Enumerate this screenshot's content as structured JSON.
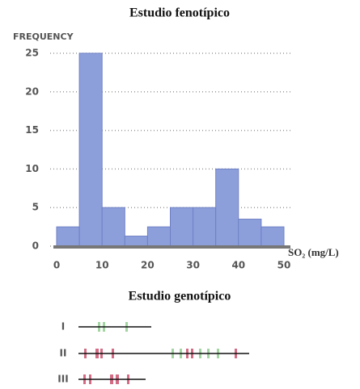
{
  "chart_data": {
    "type": "histogram",
    "title": "Estudio fenotípico",
    "y_label": "FREQUENCY",
    "x_label": "SO₂ (mg/L)",
    "bins": [
      0,
      5,
      10,
      15,
      20,
      25,
      30,
      35,
      40,
      45,
      50
    ],
    "values": [
      2.5,
      25,
      5,
      1.3,
      2.5,
      5,
      5,
      10,
      3.5,
      2.5
    ],
    "color": "#8d9fdb",
    "xlim": [
      0,
      50
    ],
    "xticks": [
      0,
      10,
      20,
      30,
      40,
      50
    ],
    "ylim": [
      0,
      25
    ],
    "yticks": [
      0,
      5,
      10,
      15,
      20,
      25
    ],
    "grid": true
  },
  "genotype": {
    "title": "Estudio genotípico",
    "rows": [
      "I",
      "II",
      "III"
    ]
  }
}
